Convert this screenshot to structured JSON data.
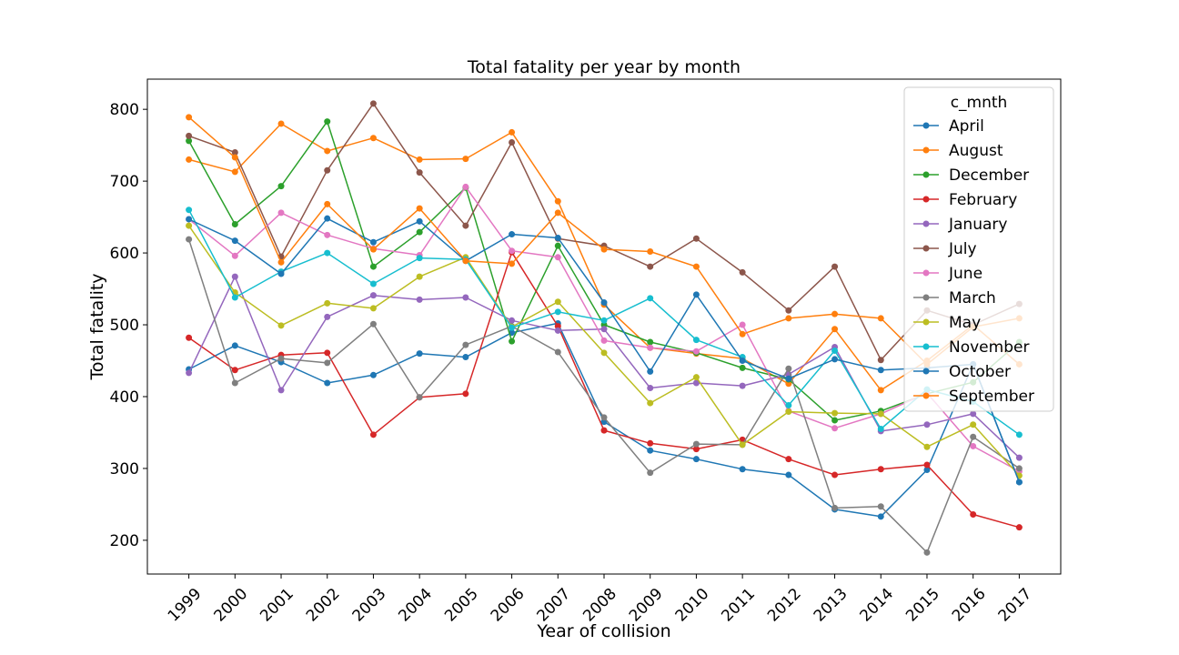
{
  "chart_data": {
    "type": "line",
    "title": "Total fatality per year by month",
    "xlabel": "Year of collision",
    "ylabel": "Total fatality",
    "x": [
      "1999",
      "2000",
      "2001",
      "2002",
      "2003",
      "2004",
      "2005",
      "2006",
      "2007",
      "2008",
      "2009",
      "2010",
      "2011",
      "2012",
      "2013",
      "2014",
      "2015",
      "2016",
      "2017"
    ],
    "yticks": [
      200,
      300,
      400,
      500,
      600,
      700,
      800
    ],
    "ylim": [
      153,
      842
    ],
    "grid": false,
    "legend": {
      "title": "c_mnth",
      "placement": "top-right"
    },
    "series": [
      {
        "name": "April",
        "color": "#1f77b4",
        "values": [
          438,
          471,
          448,
          419,
          430,
          460,
          455,
          489,
          502,
          365,
          325,
          313,
          299,
          291,
          243,
          233,
          298,
          445,
          281
        ]
      },
      {
        "name": "August",
        "color": "#ff7f0e",
        "values": [
          730,
          713,
          780,
          742,
          760,
          730,
          731,
          768,
          672,
          528,
          468,
          460,
          453,
          418,
          494,
          409,
          450,
          500,
          445
        ]
      },
      {
        "name": "December",
        "color": "#2ca02c",
        "values": [
          756,
          640,
          693,
          783,
          581,
          629,
          691,
          477,
          610,
          500,
          476,
          461,
          440,
          424,
          367,
          380,
          404,
          420,
          476
        ]
      },
      {
        "name": "February",
        "color": "#d62728",
        "values": [
          482,
          437,
          458,
          461,
          347,
          399,
          404,
          601,
          498,
          353,
          335,
          327,
          340,
          313,
          291,
          299,
          305,
          236,
          218
        ]
      },
      {
        "name": "January",
        "color": "#9467bd",
        "values": [
          433,
          567,
          409,
          511,
          541,
          535,
          538,
          506,
          492,
          494,
          412,
          419,
          415,
          431,
          469,
          352,
          361,
          376,
          315
        ]
      },
      {
        "name": "July",
        "color": "#8c564b",
        "values": [
          763,
          740,
          595,
          715,
          808,
          712,
          638,
          754,
          620,
          610,
          581,
          620,
          573,
          520,
          581,
          451,
          520,
          500,
          529
        ]
      },
      {
        "name": "June",
        "color": "#e377c2",
        "values": [
          647,
          596,
          656,
          625,
          606,
          597,
          692,
          603,
          594,
          478,
          468,
          463,
          500,
          380,
          356,
          376,
          405,
          331,
          296
        ]
      },
      {
        "name": "March",
        "color": "#7f7f7f",
        "values": [
          619,
          419,
          453,
          447,
          501,
          399,
          472,
          498,
          462,
          371,
          294,
          334,
          333,
          439,
          245,
          247,
          183,
          344,
          300
        ]
      },
      {
        "name": "May",
        "color": "#bcbd22",
        "values": [
          638,
          545,
          499,
          530,
          523,
          567,
          594,
          497,
          532,
          461,
          391,
          427,
          333,
          379,
          377,
          376,
          330,
          361,
          290
        ]
      },
      {
        "name": "November",
        "color": "#17becf",
        "values": [
          660,
          538,
          574,
          600,
          557,
          593,
          591,
          496,
          518,
          506,
          537,
          479,
          455,
          388,
          464,
          355,
          410,
          393,
          347
        ]
      },
      {
        "name": "October",
        "color": "#1f77b4",
        "values": [
          647,
          617,
          571,
          648,
          615,
          644,
          589,
          626,
          621,
          531,
          435,
          542,
          450,
          425,
          452,
          437,
          440,
          445,
          281
        ]
      },
      {
        "name": "September",
        "color": "#ff7f0e",
        "values": [
          789,
          733,
          587,
          668,
          605,
          662,
          589,
          585,
          656,
          605,
          602,
          581,
          487,
          509,
          515,
          509,
          445,
          497,
          509
        ]
      }
    ]
  }
}
